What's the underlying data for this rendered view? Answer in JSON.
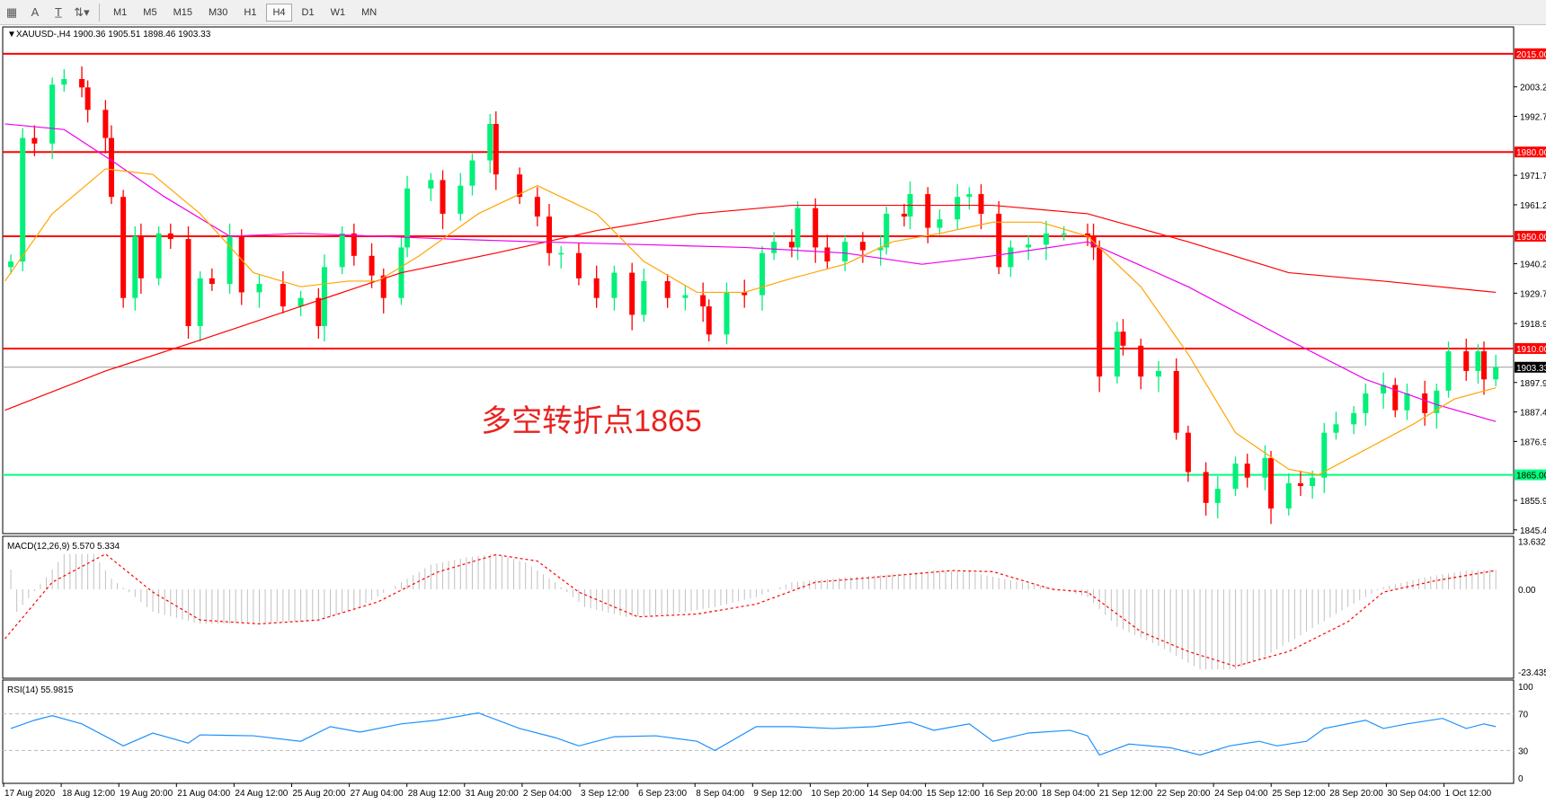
{
  "toolbar": {
    "icons": [
      "grid-icon",
      "text-icon",
      "text-label-icon",
      "arrows-icon"
    ],
    "timeframes": [
      "M1",
      "M5",
      "M15",
      "M30",
      "H1",
      "H4",
      "D1",
      "W1",
      "MN"
    ],
    "active_timeframe": "H4"
  },
  "header": {
    "symbol_info": "XAUUSD-,H4  1900.36 1905.51 1898.46 1903.33"
  },
  "annotation": {
    "text": "多空转折点1865",
    "color": "#e8231f"
  },
  "colors": {
    "bull": "#00f07a",
    "bear": "#ff0000",
    "ma_fast": "#ffa500",
    "ma_mid": "#ee00ee",
    "ma_slow": "#ff0000",
    "level_red": "#ff0000",
    "level_green": "#00ff7f",
    "macd_hist": "#c0c0c0",
    "macd_signal": "#ff0000",
    "rsi": "#1e90ff"
  },
  "chart_data": {
    "type": "candlestick",
    "symbol": "XAUUSD-",
    "timeframe": "H4",
    "current_price": "1903.33",
    "price_axis": {
      "range": [
        1845.4,
        2018
      ],
      "ticks": [
        "2003.20",
        "1992.70",
        "1971.70",
        "1961.20",
        "1940.20",
        "1929.70",
        "1918.90",
        "1897.90",
        "1887.40",
        "1876.90",
        "1855.90",
        "1845.40"
      ]
    },
    "levels": [
      {
        "label": "2015.00",
        "value": 2015,
        "color": "red"
      },
      {
        "label": "1980.00",
        "value": 1980,
        "color": "red"
      },
      {
        "label": "1950.00",
        "value": 1950,
        "color": "red"
      },
      {
        "label": "1910.00",
        "value": 1910,
        "color": "red"
      },
      {
        "label": "1865.00",
        "value": 1865,
        "color": "green"
      }
    ],
    "candles_bar_close": [
      [
        1,
        1941
      ],
      [
        3,
        1985
      ],
      [
        5,
        1983
      ],
      [
        8,
        2004
      ],
      [
        10,
        2006
      ],
      [
        13,
        2003
      ],
      [
        14,
        1995
      ],
      [
        17,
        1985
      ],
      [
        18,
        1964
      ],
      [
        20,
        1928
      ],
      [
        22,
        1950
      ],
      [
        23,
        1935
      ],
      [
        26,
        1951
      ],
      [
        28,
        1949
      ],
      [
        31,
        1918
      ],
      [
        33,
        1935
      ],
      [
        35,
        1933
      ],
      [
        38,
        1950
      ],
      [
        40,
        1930
      ],
      [
        43,
        1933
      ],
      [
        47,
        1925
      ],
      [
        50,
        1928
      ],
      [
        53,
        1918
      ],
      [
        54,
        1939
      ],
      [
        57,
        1951
      ],
      [
        59,
        1943
      ],
      [
        62,
        1936
      ],
      [
        64,
        1928
      ],
      [
        67,
        1946
      ],
      [
        68,
        1967
      ],
      [
        72,
        1970
      ],
      [
        74,
        1958
      ],
      [
        77,
        1968
      ],
      [
        79,
        1977
      ],
      [
        82,
        1990
      ],
      [
        83,
        1972
      ],
      [
        87,
        1964
      ],
      [
        90,
        1957
      ],
      [
        92,
        1944
      ],
      [
        94,
        1944
      ],
      [
        97,
        1935
      ],
      [
        100,
        1928
      ],
      [
        103,
        1937
      ],
      [
        106,
        1922
      ],
      [
        108,
        1934
      ],
      [
        112,
        1928
      ],
      [
        115,
        1929
      ],
      [
        118,
        1925
      ],
      [
        119,
        1915
      ],
      [
        122,
        1930
      ],
      [
        125,
        1929
      ],
      [
        128,
        1944
      ],
      [
        130,
        1948
      ],
      [
        133,
        1946
      ],
      [
        134,
        1960
      ],
      [
        137,
        1946
      ],
      [
        139,
        1941
      ],
      [
        142,
        1948
      ],
      [
        145,
        1945
      ],
      [
        148,
        1946
      ],
      [
        149,
        1958
      ],
      [
        152,
        1957
      ],
      [
        153,
        1965
      ],
      [
        156,
        1953
      ],
      [
        158,
        1956
      ],
      [
        161,
        1964
      ],
      [
        163,
        1965
      ],
      [
        165,
        1958
      ],
      [
        168,
        1939
      ],
      [
        170,
        1946
      ],
      [
        173,
        1947
      ],
      [
        176,
        1951
      ],
      [
        179,
        1951
      ],
      [
        183,
        1950
      ],
      [
        184,
        1946
      ],
      [
        185,
        1900
      ],
      [
        188,
        1916
      ],
      [
        189,
        1911
      ],
      [
        192,
        1900
      ],
      [
        195,
        1902
      ],
      [
        198,
        1880
      ],
      [
        200,
        1866
      ],
      [
        203,
        1855
      ],
      [
        205,
        1860
      ],
      [
        208,
        1869
      ],
      [
        210,
        1864
      ],
      [
        213,
        1871
      ],
      [
        214,
        1853
      ],
      [
        217,
        1862
      ],
      [
        219,
        1861
      ],
      [
        221,
        1864
      ],
      [
        223,
        1880
      ],
      [
        225,
        1883
      ],
      [
        228,
        1887
      ],
      [
        230,
        1894
      ],
      [
        233,
        1897
      ],
      [
        235,
        1888
      ],
      [
        237,
        1894
      ],
      [
        240,
        1887
      ],
      [
        242,
        1895
      ],
      [
        244,
        1909
      ],
      [
        247,
        1902
      ],
      [
        249,
        1909
      ],
      [
        250,
        1899
      ],
      [
        252,
        1903.33
      ]
    ],
    "ma_slow": [
      [
        0,
        1888
      ],
      [
        17,
        1902
      ],
      [
        33,
        1913
      ],
      [
        50,
        1925
      ],
      [
        67,
        1937
      ],
      [
        83,
        1944
      ],
      [
        100,
        1952
      ],
      [
        117,
        1958
      ],
      [
        133,
        1961
      ],
      [
        150,
        1961
      ],
      [
        167,
        1961
      ],
      [
        183,
        1958
      ],
      [
        200,
        1948
      ],
      [
        217,
        1937
      ],
      [
        233,
        1934
      ],
      [
        252,
        1930
      ]
    ],
    "ma_mid": [
      [
        0,
        1990
      ],
      [
        10,
        1988
      ],
      [
        18,
        1977
      ],
      [
        27,
        1964
      ],
      [
        38,
        1950
      ],
      [
        50,
        1951
      ],
      [
        63,
        1950
      ],
      [
        75,
        1949
      ],
      [
        90,
        1948
      ],
      [
        108,
        1947
      ],
      [
        125,
        1946
      ],
      [
        142,
        1944
      ],
      [
        155,
        1940
      ],
      [
        167,
        1943
      ],
      [
        183,
        1948
      ],
      [
        200,
        1932
      ],
      [
        217,
        1913
      ],
      [
        230,
        1899
      ],
      [
        242,
        1890
      ],
      [
        252,
        1884
      ]
    ],
    "ma_fast": [
      [
        0,
        1934
      ],
      [
        8,
        1958
      ],
      [
        17,
        1974
      ],
      [
        25,
        1972
      ],
      [
        33,
        1958
      ],
      [
        42,
        1937
      ],
      [
        50,
        1932
      ],
      [
        58,
        1934
      ],
      [
        63,
        1934
      ],
      [
        70,
        1943
      ],
      [
        80,
        1958
      ],
      [
        90,
        1968
      ],
      [
        100,
        1958
      ],
      [
        108,
        1941
      ],
      [
        117,
        1930
      ],
      [
        125,
        1930
      ],
      [
        133,
        1935
      ],
      [
        142,
        1940
      ],
      [
        150,
        1948
      ],
      [
        158,
        1951
      ],
      [
        167,
        1955
      ],
      [
        175,
        1955
      ],
      [
        183,
        1950
      ],
      [
        192,
        1932
      ],
      [
        200,
        1908
      ],
      [
        208,
        1880
      ],
      [
        217,
        1867
      ],
      [
        222,
        1865
      ],
      [
        230,
        1874
      ],
      [
        238,
        1883
      ],
      [
        245,
        1892
      ],
      [
        252,
        1896
      ]
    ],
    "macd": {
      "label": "MACD(12,26,9) 5.570 5.334",
      "range": [
        -23.435,
        13.632
      ],
      "ticks": [
        "13.632",
        "0.00",
        "-23.435"
      ],
      "histogram": [
        [
          2,
          -6.4
        ],
        [
          7,
          3.4
        ],
        [
          10,
          10
        ],
        [
          15,
          10
        ],
        [
          18,
          3
        ],
        [
          21,
          -0.8
        ],
        [
          25,
          -6.4
        ],
        [
          33,
          -9.8
        ],
        [
          43,
          -9.5
        ],
        [
          53,
          -9
        ],
        [
          60,
          -5
        ],
        [
          67,
          2
        ],
        [
          72,
          7
        ],
        [
          78,
          9
        ],
        [
          83,
          10
        ],
        [
          88,
          7.6
        ],
        [
          93,
          2
        ],
        [
          98,
          -5
        ],
        [
          105,
          -7.8
        ],
        [
          113,
          -7
        ],
        [
          120,
          -5
        ],
        [
          127,
          -2.2
        ],
        [
          133,
          2
        ],
        [
          142,
          3.4
        ],
        [
          150,
          4.2
        ],
        [
          157,
          5.3
        ],
        [
          163,
          5
        ],
        [
          170,
          2.5
        ],
        [
          177,
          0.5
        ],
        [
          183,
          -2.2
        ],
        [
          188,
          -10.6
        ],
        [
          195,
          -16
        ],
        [
          202,
          -22.7
        ],
        [
          208,
          -22.7
        ],
        [
          213,
          -19
        ],
        [
          220,
          -12
        ],
        [
          227,
          -5
        ],
        [
          233,
          0.6
        ],
        [
          240,
          3.4
        ],
        [
          247,
          5.3
        ],
        [
          252,
          5.57
        ]
      ],
      "signal": [
        [
          0,
          -14
        ],
        [
          8,
          2
        ],
        [
          17,
          10
        ],
        [
          25,
          -0.8
        ],
        [
          33,
          -8.7
        ],
        [
          43,
          -9.8
        ],
        [
          53,
          -8.7
        ],
        [
          63,
          -3.6
        ],
        [
          73,
          4.8
        ],
        [
          83,
          9.8
        ],
        [
          90,
          8
        ],
        [
          97,
          -0.8
        ],
        [
          107,
          -7.8
        ],
        [
          117,
          -7
        ],
        [
          127,
          -4.2
        ],
        [
          137,
          2
        ],
        [
          147,
          3.4
        ],
        [
          160,
          5.3
        ],
        [
          167,
          5
        ],
        [
          177,
          0
        ],
        [
          183,
          -0.8
        ],
        [
          192,
          -12
        ],
        [
          200,
          -17.6
        ],
        [
          208,
          -21.8
        ],
        [
          217,
          -17.6
        ],
        [
          227,
          -9.2
        ],
        [
          233,
          -0.8
        ],
        [
          242,
          2.5
        ],
        [
          252,
          5.33
        ]
      ]
    },
    "rsi": {
      "label": "RSI(14) 55.9815",
      "range": [
        0,
        100
      ],
      "ticks": [
        "100",
        "70",
        "30",
        "0"
      ],
      "levels": [
        70,
        30
      ],
      "values": [
        [
          1,
          54
        ],
        [
          5,
          63
        ],
        [
          8,
          68
        ],
        [
          13,
          59
        ],
        [
          18,
          42
        ],
        [
          20,
          35
        ],
        [
          25,
          49
        ],
        [
          31,
          38
        ],
        [
          33,
          47
        ],
        [
          42,
          46
        ],
        [
          50,
          40
        ],
        [
          55,
          56
        ],
        [
          60,
          50
        ],
        [
          67,
          59
        ],
        [
          73,
          63
        ],
        [
          80,
          71
        ],
        [
          87,
          54
        ],
        [
          93,
          44
        ],
        [
          97,
          35
        ],
        [
          103,
          45
        ],
        [
          110,
          46
        ],
        [
          117,
          40
        ],
        [
          120,
          30
        ],
        [
          127,
          56
        ],
        [
          133,
          56
        ],
        [
          140,
          54
        ],
        [
          147,
          56
        ],
        [
          153,
          61
        ],
        [
          157,
          52
        ],
        [
          163,
          59
        ],
        [
          167,
          40
        ],
        [
          173,
          49
        ],
        [
          180,
          52
        ],
        [
          183,
          46
        ],
        [
          185,
          25
        ],
        [
          190,
          37
        ],
        [
          197,
          33
        ],
        [
          202,
          25
        ],
        [
          207,
          35
        ],
        [
          212,
          40
        ],
        [
          215,
          35
        ],
        [
          220,
          40
        ],
        [
          223,
          54
        ],
        [
          230,
          63
        ],
        [
          233,
          54
        ],
        [
          237,
          59
        ],
        [
          243,
          65
        ],
        [
          247,
          54
        ],
        [
          250,
          59
        ],
        [
          252,
          56
        ]
      ]
    },
    "time_labels": [
      "17 Aug 2020",
      "18 Aug 12:00",
      "19 Aug 20:00",
      "21 Aug 04:00",
      "24 Aug 12:00",
      "25 Aug 20:00",
      "27 Aug 04:00",
      "28 Aug 12:00",
      "31 Aug 20:00",
      "2 Sep 04:00",
      "3 Sep 12:00",
      "6 Sep 23:00",
      "8 Sep 04:00",
      "9 Sep 12:00",
      "10 Sep 20:00",
      "14 Sep 04:00",
      "15 Sep 12:00",
      "16 Sep 20:00",
      "18 Sep 04:00",
      "21 Sep 12:00",
      "22 Sep 20:00",
      "24 Sep 04:00",
      "25 Sep 12:00",
      "28 Sep 20:00",
      "30 Sep 04:00",
      "1 Oct 12:00"
    ]
  }
}
